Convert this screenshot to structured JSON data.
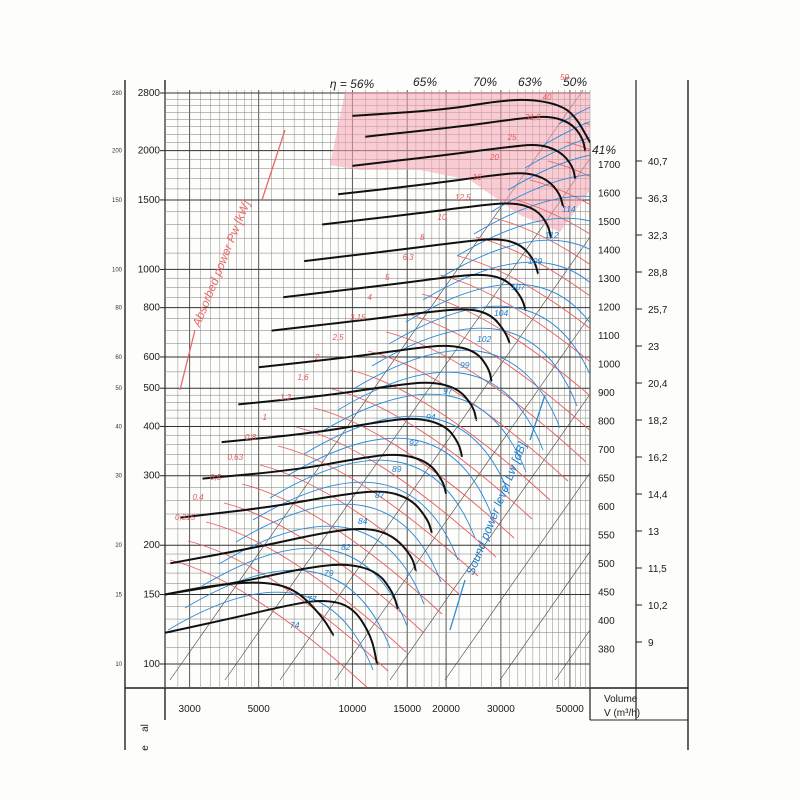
{
  "chart_data": {
    "type": "line",
    "title": "",
    "pressure_axis_left": {
      "ticks": [
        2800,
        2000,
        1500,
        1000,
        800,
        600,
        500,
        400,
        300,
        200,
        150,
        100
      ]
    },
    "pressure_axis_small": {
      "ticks": [
        "280",
        "200",
        "150",
        "100",
        "80",
        "60",
        "50",
        "40",
        "30",
        "20",
        "15",
        "10"
      ]
    },
    "left_edge_labels": [
      "al",
      "e"
    ],
    "xlabel": "Volume",
    "xunit": "V (m³/h)",
    "xticks": [
      3000,
      5000,
      10000,
      15000,
      20000,
      30000,
      50000
    ],
    "xtick_labels": [
      "3000",
      "5000",
      "10000",
      "15000",
      "20000",
      "30000",
      "50000"
    ],
    "speed_axis": [
      "1700",
      "1600",
      "1500",
      "1400",
      "1300",
      "1200",
      "1100",
      "1000",
      "900",
      "800",
      "700",
      "650",
      "600",
      "550",
      "500",
      "450",
      "400",
      "380"
    ],
    "velocity_axis": [
      "40,7",
      "36,3",
      "32,3",
      "28,8",
      "25,7",
      "23",
      "20,4",
      "18,2",
      "16,2",
      "14,4",
      "13",
      "11,5",
      "10,2",
      "9"
    ],
    "efficiency_labels": [
      "η = 56%",
      "65%",
      "70%",
      "63%",
      "50%",
      "41%"
    ],
    "power_label": "Absorbed power Pw [kW]",
    "sound_label": "Sound power level Lw [dB]",
    "power_values": [
      "0,315",
      "0,4",
      "0,5",
      "0,63",
      "0,8",
      "1",
      "1,3",
      "1,6",
      "2",
      "2,5",
      "3,15",
      "4",
      "5",
      "6,3",
      "8",
      "10",
      "12,5",
      "16",
      "20",
      "25",
      "31,5",
      "40",
      "50"
    ],
    "sound_values": [
      "74",
      "77",
      "79",
      "82",
      "84",
      "87",
      "89",
      "92",
      "94",
      "97",
      "99",
      "102",
      "104",
      "107",
      "109",
      "112",
      "114"
    ],
    "series": [
      {
        "name": "380",
        "values": [
          [
            2500,
            150
          ],
          [
            3500,
            158
          ],
          [
            5000,
            162
          ],
          [
            6500,
            156
          ],
          [
            8000,
            132
          ],
          [
            8700,
            118
          ]
        ]
      },
      {
        "name": "400",
        "values": [
          [
            2500,
            120
          ],
          [
            4000,
            130
          ],
          [
            6000,
            140
          ],
          [
            8000,
            146
          ],
          [
            10000,
            140
          ],
          [
            11500,
            118
          ],
          [
            12000,
            100
          ]
        ]
      },
      {
        "name": "450",
        "values": [
          [
            2500,
            150
          ],
          [
            4500,
            162
          ],
          [
            7000,
            175
          ],
          [
            9500,
            180
          ],
          [
            12000,
            172
          ],
          [
            13500,
            152
          ],
          [
            14000,
            138
          ]
        ]
      },
      {
        "name": "500",
        "values": [
          [
            2600,
            180
          ],
          [
            5000,
            198
          ],
          [
            8000,
            215
          ],
          [
            11000,
            222
          ],
          [
            13500,
            212
          ],
          [
            15500,
            188
          ],
          [
            16000,
            172
          ]
        ]
      },
      {
        "name": "550",
        "values": [
          [
            2800,
            235
          ],
          [
            5500,
            250
          ],
          [
            9000,
            268
          ],
          [
            12500,
            276
          ],
          [
            15500,
            262
          ],
          [
            17500,
            232
          ],
          [
            18000,
            215
          ]
        ]
      },
      {
        "name": "600",
        "values": [
          [
            3300,
            295
          ],
          [
            6500,
            310
          ],
          [
            10500,
            332
          ],
          [
            14000,
            342
          ],
          [
            17500,
            326
          ],
          [
            19500,
            292
          ],
          [
            20000,
            270
          ]
        ]
      },
      {
        "name": "650",
        "values": [
          [
            3800,
            365
          ],
          [
            7500,
            385
          ],
          [
            12000,
            410
          ],
          [
            16000,
            422
          ],
          [
            20000,
            402
          ],
          [
            22000,
            362
          ],
          [
            22500,
            335
          ]
        ]
      },
      {
        "name": "700",
        "values": [
          [
            4300,
            455
          ],
          [
            8500,
            480
          ],
          [
            13500,
            508
          ],
          [
            18000,
            520
          ],
          [
            22000,
            498
          ],
          [
            24500,
            448
          ],
          [
            25000,
            415
          ]
        ]
      },
      {
        "name": "800",
        "values": [
          [
            5000,
            565
          ],
          [
            10000,
            600
          ],
          [
            15500,
            630
          ],
          [
            20500,
            645
          ],
          [
            25000,
            620
          ],
          [
            27500,
            560
          ],
          [
            28000,
            520
          ]
        ]
      },
      {
        "name": "900",
        "values": [
          [
            5500,
            700
          ],
          [
            11000,
            745
          ],
          [
            17500,
            780
          ],
          [
            23500,
            798
          ],
          [
            28000,
            768
          ],
          [
            31000,
            695
          ],
          [
            32000,
            650
          ]
        ]
      },
      {
        "name": "1000",
        "values": [
          [
            6000,
            850
          ],
          [
            12500,
            910
          ],
          [
            20000,
            955
          ],
          [
            26500,
            975
          ],
          [
            31500,
            940
          ],
          [
            35000,
            850
          ],
          [
            36000,
            790
          ]
        ]
      },
      {
        "name": "1100",
        "values": [
          [
            7000,
            1050
          ],
          [
            14000,
            1120
          ],
          [
            22500,
            1175
          ],
          [
            29500,
            1200
          ],
          [
            35000,
            1155
          ],
          [
            38500,
            1050
          ],
          [
            39500,
            975
          ]
        ]
      },
      {
        "name": "1200",
        "values": [
          [
            8000,
            1300
          ],
          [
            16000,
            1385
          ],
          [
            25000,
            1450
          ],
          [
            33000,
            1480
          ],
          [
            39000,
            1420
          ],
          [
            42500,
            1300
          ],
          [
            43500,
            1200
          ]
        ]
      },
      {
        "name": "1300",
        "values": [
          [
            9000,
            1550
          ],
          [
            18000,
            1650
          ],
          [
            28000,
            1730
          ],
          [
            36000,
            1765
          ],
          [
            42500,
            1690
          ],
          [
            46500,
            1550
          ],
          [
            47500,
            1440
          ]
        ]
      },
      {
        "name": "1400",
        "values": [
          [
            10000,
            1830
          ],
          [
            20000,
            1950
          ],
          [
            31000,
            2040
          ],
          [
            39500,
            2080
          ],
          [
            46500,
            1995
          ],
          [
            51000,
            1830
          ],
          [
            52000,
            1700
          ]
        ]
      },
      {
        "name": "1500",
        "values": [
          [
            11000,
            2170
          ],
          [
            22000,
            2300
          ],
          [
            34000,
            2410
          ],
          [
            43000,
            2450
          ],
          [
            50500,
            2350
          ],
          [
            55000,
            2150
          ],
          [
            56000,
            2000
          ]
        ]
      },
      {
        "name": "1700",
        "values": [
          [
            10000,
            2450
          ],
          [
            20000,
            2540
          ],
          [
            29000,
            2670
          ],
          [
            37000,
            2700
          ],
          [
            46000,
            2620
          ],
          [
            52000,
            2450
          ],
          [
            58000,
            2100
          ]
        ]
      }
    ]
  }
}
